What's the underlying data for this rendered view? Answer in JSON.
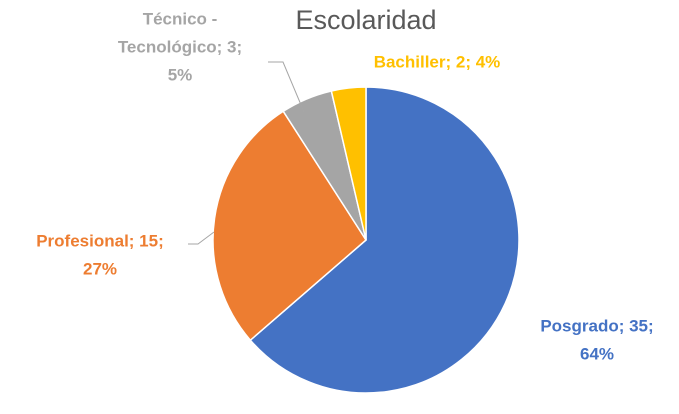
{
  "chart_data": {
    "type": "pie",
    "title": "Escolaridad",
    "categories": [
      "Posgrado",
      "Profesional",
      "Técnico - Tecnológico",
      "Bachiller"
    ],
    "values": [
      35,
      15,
      3,
      2
    ],
    "value_labels": [
      [
        "Posgrado; 35;",
        "64%"
      ],
      [
        "Profesional; 15;",
        "27%"
      ],
      [
        "Técnico -",
        "Tecnológico; 3;",
        "5%"
      ],
      [
        "Bachiller; 2; 4%"
      ]
    ],
    "colors": [
      "#4472c4",
      "#ed7d31",
      "#a5a5a5",
      "#ffc000"
    ]
  }
}
